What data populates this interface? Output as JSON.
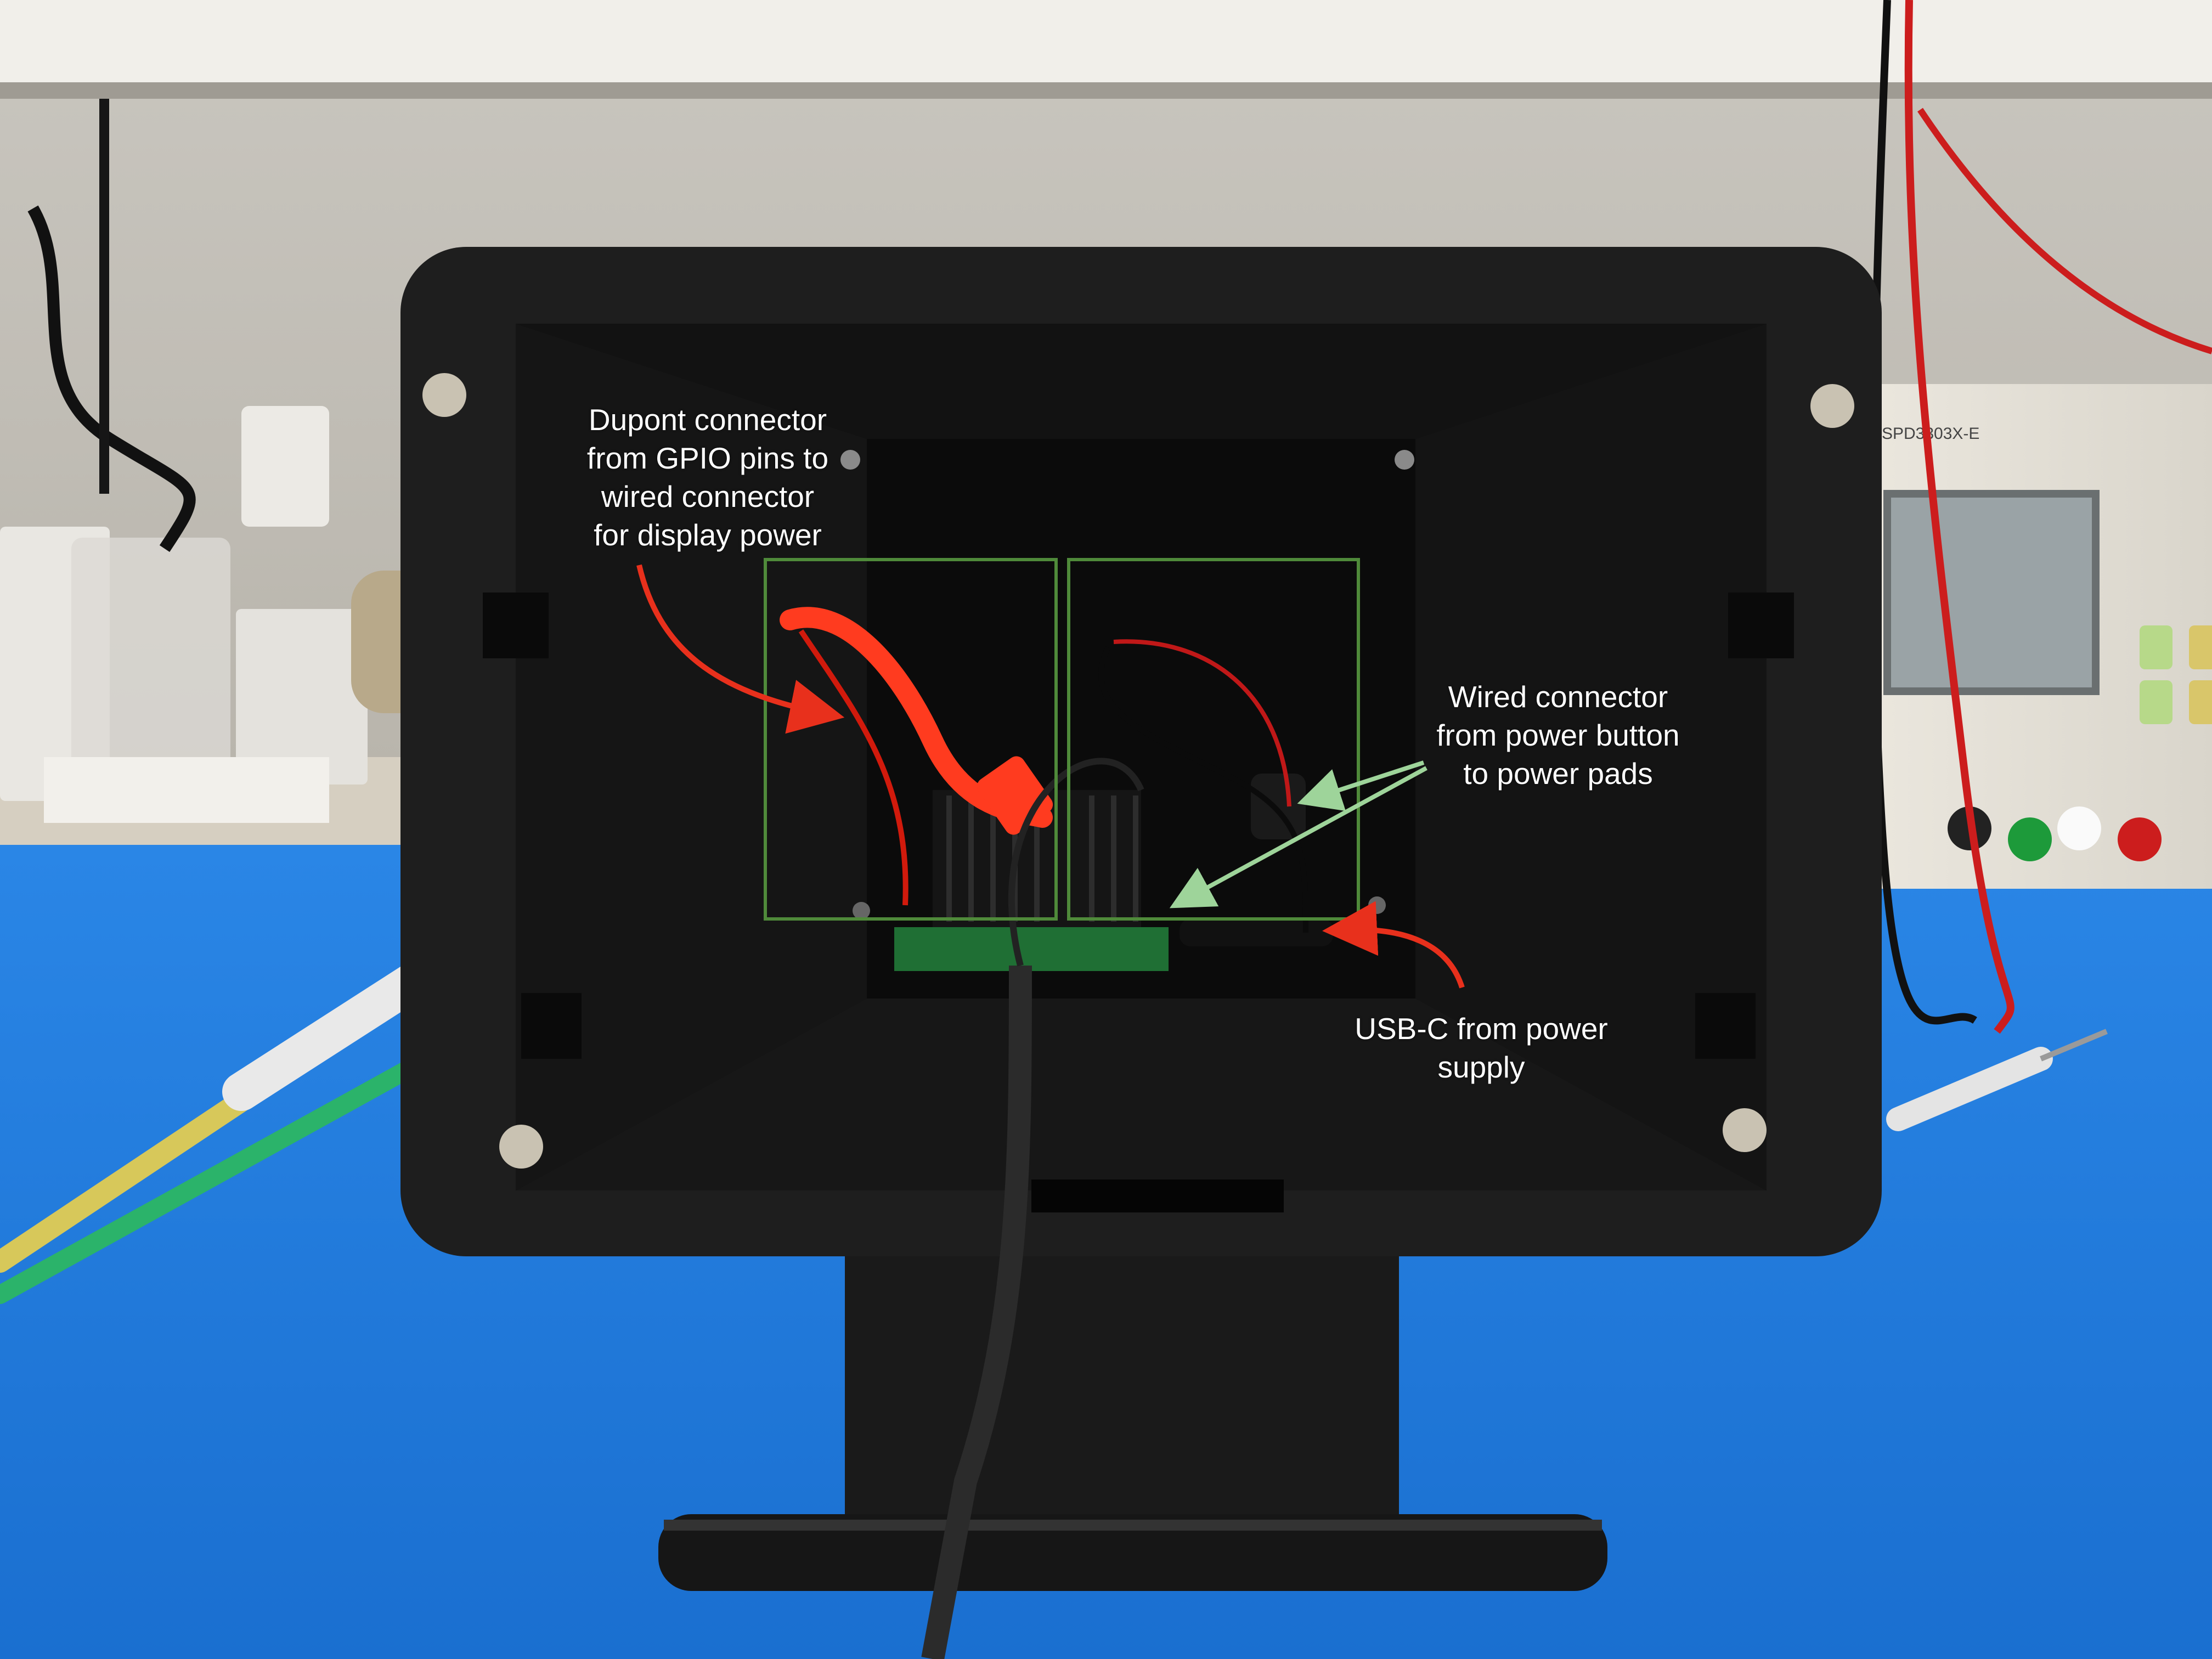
{
  "annotations": {
    "dupont": "Dupont connector\nfrom GPIO pins to\nwired connector\nfor display power",
    "power_button": "Wired connector\nfrom power button\nto power pads",
    "usb_c": "USB-C from power\nsupply"
  },
  "equipment": {
    "power_supply_model": "SPD3303X-E"
  },
  "colors": {
    "annotation_arrow_red": "#e8301c",
    "annotation_arrow_green": "#9ed49a",
    "highlight_box_green": "#4f8a3a",
    "enclosure_black": "#1c1c1c",
    "mat_blue": "#1f78d8"
  }
}
